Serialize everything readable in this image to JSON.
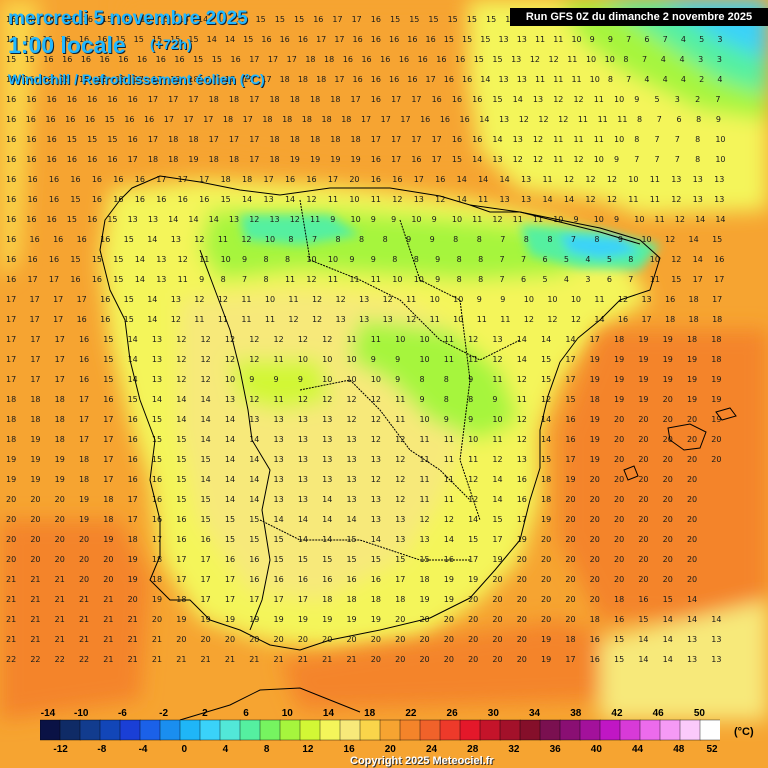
{
  "header": {
    "date": "mercredi 5 novembre 2025",
    "time": "1:00 locale",
    "lead": "(+72h)",
    "variable": "Windchill / Refroidissement éolien (°C)"
  },
  "run": "Run GFS 0Z du dimanche 2 novembre 2025",
  "footer": {
    "copyright": "Copyright 2025 Meteociel.fr"
  },
  "legend": {
    "unit": "(°C)",
    "tick_labels": [
      "-14",
      "-12",
      "-10",
      "-8",
      "-6",
      "-4",
      "-2",
      "0",
      "2",
      "4",
      "6",
      "8",
      "10",
      "12",
      "14",
      "16",
      "18",
      "20",
      "22",
      "24",
      "26",
      "28",
      "30",
      "32",
      "34",
      "36",
      "38",
      "40",
      "42",
      "44",
      "46",
      "48",
      "50",
      "52"
    ],
    "colors": [
      "#0a1245",
      "#0f2b66",
      "#123c8e",
      "#1246b8",
      "#1a3fd6",
      "#1b61e8",
      "#1a8ef0",
      "#1fb6f7",
      "#3ad2f9",
      "#52e7d8",
      "#55f0a0",
      "#76f460",
      "#a6f53d",
      "#d2f735",
      "#f4f55a",
      "#f7e97a",
      "#fad54a",
      "#f6a431",
      "#f4842a",
      "#f1622a",
      "#ee3a2a",
      "#e4182a",
      "#c4142a",
      "#a3112a",
      "#850f2a",
      "#7a1050",
      "#8a0f73",
      "#a3119b",
      "#c016c4",
      "#d83ad8",
      "#ec6bec",
      "#f59af5",
      "#fbcafb",
      "#ffffff"
    ]
  },
  "map": {
    "region": "Péninsule ibérique",
    "grid_rows": [
      "15 16 16 16 16 15 15 15 15 15 14 14 15 15 15 15 16 17 17 16 15 15 15 15 15 15 15 13 12 11 10 9 7 6 5 4 3 3",
      "15 16 16 16 16 16 15 15 15 15 15 14 14 15 16 16 16 17 17 16 16 16 16 16 15 15 15 13 13 11 11 10 9 9 7 6 7 4 5 3",
      "15 15 16 16 16 16 16 16 16 16 15 15 16 17 17 17 18 18 16 16 16 16 16 16 16 15 15 13 12 12 11 10 10 8 7 4 4 3 3",
      "15 16 16 15 16 16 16 17 17 18 18 17 17 17 17 18 18 18 17 16 16 16 16 17 16 16 14 13 13 11 11 11 10 8 7 4 4 4 2 4",
      "16 16 16 16 16 16 16 17 17 17 18 18 17 18 18 18 18 17 16 17 17 16 16 16 15 14 13 12 12 11 10 9 5 3 2 7",
      "16 16 16 16 16 15 16 16 17 17 17 18 17 18 18 18 18 18 17 17 17 16 16 16 14 13 12 12 12 11 11 11 8 7 6 8 9",
      "16 16 16 15 15 15 16 17 18 18 17 17 17 18 18 18 18 18 17 17 17 17 16 16 14 13 12 11 11 11 10 8 7 7 8 10",
      "16 16 16 16 16 16 17 18 18 19 18 18 17 18 19 19 19 19 16 17 16 17 15 14 13 12 12 11 12 10 9 7 7 7 8 10",
      "16 16 16 16 16 16 16 17 17 17 18 18 17 16 16 17 20 16 16 17 16 14 14 14 13 11 12 12 12 10 11 13 13 13",
      "16 16 16 15 16 16 16 16 16 16 15 14 13 14 12 11 10 11 12 13 12 14 11 13 13 14 14 12 12 11 11 12 13 13",
      "16 16 16 15 16 15 13 13 14 14 14 13 12 13 12 11 9 10 9 9 10 9 10 11 12 11 11 10 9 10 9 10 11 12 14 14",
      "16 16 16 16 16 15 14 13 12 11 12 10 8 7 8 8 8 9 9 8 8 7 8 8 7 8 9 10 12 14 15",
      "16 16 16 15 15 15 14 13 12 11 10 9 8 8 10 10 9 9 8 8 9 8 8 7 7 6 5 4 5 8 10 12 14 16",
      "16 17 17 16 16 15 14 13 11 9 8 7 8 11 12 11 11 11 10 10 9 8 8 7 6 5 4 3 6 7 11 15 17 17",
      "17 17 17 17 16 15 14 13 12 12 11 10 11 12 12 13 12 11 10 10 9 9 10 10 10 11 12 13 16 18 17",
      "17 17 17 16 16 15 14 12 11 11 11 11 12 12 13 13 13 12 11 10 11 11 12 12 12 14 16 17 18 18 18",
      "17 17 17 16 15 14 13 12 12 12 12 12 12 12 11 11 10 10 11 12 13 14 14 14 17 18 19 19 18 18",
      "17 17 17 16 15 14 13 12 12 12 12 11 10 10 10 9 9 10 11 11 12 14 15 17 19 19 19 19 19 18",
      "17 17 17 16 15 14 13 12 12 10 9 9 9 10 10 10 9 8 8 9 11 12 15 17 19 19 19 19 19 19",
      "18 18 18 17 16 15 14 14 14 13 12 11 12 12 12 12 11 9 8 8 9 11 12 15 18 19 19 20 19 19",
      "18 18 18 17 17 16 15 14 14 14 13 13 13 13 12 12 11 10 9 9 10 12 14 16 19 20 20 20 20 19",
      "18 19 18 17 17 16 15 15 14 14 14 13 13 13 13 12 12 11 11 10 11 12 14 16 19 20 20 20 20 20",
      "19 19 19 18 17 16 15 15 15 14 14 13 13 13 13 13 12 11 11 11 12 13 15 17 19 20 20 20 20 20",
      "19 19 19 18 17 16 16 15 14 14 14 13 13 13 13 12 12 11 11 12 14 16 18 19 20 20 20 20 20",
      "20 20 20 19 18 17 16 15 15 14 14 13 13 14 13 13 12 11 11 12 14 16 18 20 20 20 20 20 20",
      "20 20 20 19 18 17 16 16 15 15 15 14 14 14 14 13 13 12 12 14 15 17 19 20 20 20 20 20 20",
      "20 20 20 20 19 18 17 16 16 15 15 15 14 14 15 14 13 13 14 15 17 19 20 20 20 20 20 20 20",
      "20 20 20 20 20 19 18 17 17 16 16 15 15 15 15 15 15 15 16 17 19 20 20 20 20 20 20 20 20",
      "21 21 21 20 20 19 18 17 17 17 16 16 16 16 16 16 17 18 19 19 20 20 20 20 20 20 20 20 20",
      "21 21 21 21 21 20 19 18 17 17 17 17 17 18 18 18 18 19 19 20 20 20 20 20 20 18 16 15 14",
      "21 21 21 21 21 21 20 19 19 19 19 19 19 19 19 19 20 20 20 20 20 20 20 20 18 16 15 14 14 14",
      "21 21 21 21 21 21 21 20 20 20 20 20 20 20 20 20 20 20 20 20 20 20 19 18 16 15 14 14 13 13",
      "22 22 22 22 21 21 21 21 21 21 21 21 21 21 21 20 20 20 20 20 20 20 19 17 16 15 14 14 13 13"
    ]
  }
}
